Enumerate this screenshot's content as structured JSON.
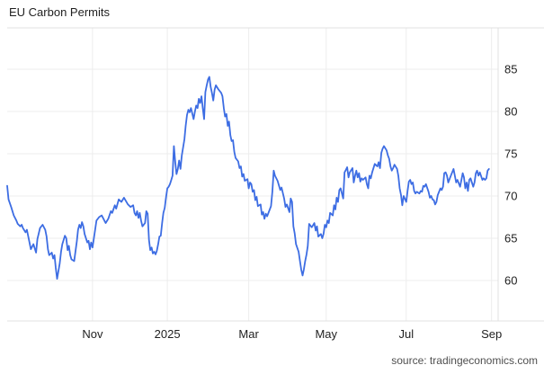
{
  "header": {
    "title": "EU Carbon Permits"
  },
  "footer": {
    "source": "source: tradingeconomics.com"
  },
  "colors": {
    "line": "#3D6DE3",
    "grid": "#EDEDED",
    "border": "#E0E0E0",
    "axis_text": "#1f1f1f",
    "title_text": "#1f1f1f",
    "source_text": "#4f4f4f",
    "background": "#FFFFFF"
  },
  "chart_data": {
    "type": "line",
    "title": "EU Carbon Permits",
    "legend": "none",
    "grid": "on",
    "x_axis": {
      "unit": "days_from_chart_start (chart spans ~Sep 2024 to ~Sep 2025)",
      "range": [
        0,
        374
      ],
      "ticks": [
        {
          "day": 65,
          "label": "Nov"
        },
        {
          "day": 122,
          "label": "2025"
        },
        {
          "day": 184,
          "label": "Mar"
        },
        {
          "day": 243,
          "label": "May"
        },
        {
          "day": 304,
          "label": "Jul"
        },
        {
          "day": 369,
          "label": "Sep"
        }
      ]
    },
    "y_axis": {
      "side": "right",
      "range": [
        55,
        90
      ],
      "ticks": [
        60,
        65,
        70,
        75,
        80,
        85
      ]
    },
    "series": [
      {
        "name": "EU Carbon Permits",
        "points": [
          [
            0,
            71.2
          ],
          [
            1,
            69.6
          ],
          [
            3,
            68.7
          ],
          [
            5,
            67.7
          ],
          [
            7,
            67.1
          ],
          [
            8,
            66.7
          ],
          [
            10,
            66.4
          ],
          [
            11,
            66.6
          ],
          [
            12,
            66.2
          ],
          [
            14,
            65.7
          ],
          [
            15,
            66.0
          ],
          [
            17,
            64.5
          ],
          [
            18,
            63.7
          ],
          [
            20,
            64.3
          ],
          [
            22,
            63.3
          ],
          [
            23,
            64.9
          ],
          [
            25,
            66.2
          ],
          [
            27,
            66.6
          ],
          [
            29,
            66.0
          ],
          [
            30,
            65.2
          ],
          [
            31,
            63.7
          ],
          [
            32,
            63.0
          ],
          [
            34,
            63.3
          ],
          [
            35,
            62.6
          ],
          [
            36,
            63.0
          ],
          [
            37,
            61.5
          ],
          [
            38,
            60.2
          ],
          [
            40,
            62.0
          ],
          [
            41,
            63.4
          ],
          [
            42,
            64.3
          ],
          [
            44,
            65.3
          ],
          [
            45,
            65.0
          ],
          [
            46,
            63.6
          ],
          [
            47,
            64.1
          ],
          [
            48,
            63.0
          ],
          [
            49,
            62.5
          ],
          [
            51,
            62.3
          ],
          [
            53,
            64.6
          ],
          [
            54,
            66.0
          ],
          [
            55,
            66.6
          ],
          [
            56,
            66.2
          ],
          [
            57,
            66.9
          ],
          [
            58,
            66.4
          ],
          [
            59,
            65.5
          ],
          [
            61,
            64.5
          ],
          [
            62,
            64.7
          ],
          [
            63,
            63.7
          ],
          [
            64,
            64.5
          ],
          [
            65,
            63.9
          ],
          [
            67,
            66.0
          ],
          [
            68,
            67.1
          ],
          [
            70,
            67.5
          ],
          [
            72,
            67.7
          ],
          [
            75,
            66.8
          ],
          [
            77,
            67.3
          ],
          [
            79,
            68.2
          ],
          [
            80,
            68.0
          ],
          [
            82,
            68.9
          ],
          [
            83,
            68.5
          ],
          [
            85,
            69.6
          ],
          [
            87,
            69.3
          ],
          [
            89,
            69.8
          ],
          [
            92,
            69.0
          ],
          [
            94,
            68.7
          ],
          [
            96,
            68.9
          ],
          [
            97,
            68.0
          ],
          [
            98,
            67.7
          ],
          [
            99,
            68.2
          ],
          [
            100,
            67.4
          ],
          [
            101,
            68.0
          ],
          [
            102,
            67.1
          ],
          [
            103,
            66.4
          ],
          [
            105,
            66.8
          ],
          [
            106,
            68.2
          ],
          [
            107,
            67.9
          ],
          [
            108,
            64.8
          ],
          [
            109,
            63.6
          ],
          [
            110,
            63.9
          ],
          [
            111,
            63.2
          ],
          [
            112,
            63.4
          ],
          [
            113,
            63.1
          ],
          [
            114,
            63.5
          ],
          [
            115,
            64.3
          ],
          [
            116,
            65.2
          ],
          [
            117,
            65.3
          ],
          [
            118,
            66.8
          ],
          [
            119,
            68.0
          ],
          [
            120,
            68.6
          ],
          [
            121,
            69.8
          ],
          [
            122,
            70.9
          ],
          [
            123,
            71.1
          ],
          [
            124,
            71.4
          ],
          [
            125,
            71.9
          ],
          [
            126,
            72.4
          ],
          [
            127,
            75.9
          ],
          [
            128,
            74.0
          ],
          [
            129,
            72.6
          ],
          [
            130,
            73.2
          ],
          [
            131,
            74.2
          ],
          [
            132,
            73.2
          ],
          [
            133,
            74.8
          ],
          [
            135,
            76.7
          ],
          [
            136,
            78.3
          ],
          [
            137,
            79.6
          ],
          [
            138,
            80.2
          ],
          [
            139,
            79.9
          ],
          [
            140,
            80.4
          ],
          [
            142,
            79.1
          ],
          [
            143,
            80.0
          ],
          [
            144,
            80.7
          ],
          [
            145,
            80.4
          ],
          [
            146,
            81.5
          ],
          [
            147,
            81.0
          ],
          [
            148,
            81.8
          ],
          [
            149,
            80.4
          ],
          [
            150,
            79.1
          ],
          [
            151,
            82.3
          ],
          [
            152,
            83.1
          ],
          [
            153,
            83.8
          ],
          [
            154,
            84.1
          ],
          [
            155,
            82.9
          ],
          [
            156,
            82.2
          ],
          [
            157,
            81.3
          ],
          [
            158,
            82.6
          ],
          [
            159,
            83.1
          ],
          [
            161,
            82.6
          ],
          [
            163,
            82.2
          ],
          [
            164,
            81.8
          ],
          [
            165,
            80.4
          ],
          [
            166,
            79.4
          ],
          [
            167,
            79.7
          ],
          [
            168,
            78.3
          ],
          [
            169,
            78.8
          ],
          [
            170,
            77.2
          ],
          [
            171,
            76.5
          ],
          [
            172,
            76.6
          ],
          [
            173,
            75.2
          ],
          [
            174,
            74.5
          ],
          [
            176,
            74.1
          ],
          [
            177,
            73.3
          ],
          [
            178,
            73.5
          ],
          [
            179,
            72.3
          ],
          [
            180,
            72.6
          ],
          [
            181,
            71.8
          ],
          [
            183,
            72.0
          ],
          [
            184,
            70.9
          ],
          [
            185,
            71.6
          ],
          [
            186,
            71.4
          ],
          [
            187,
            70.5
          ],
          [
            188,
            70.7
          ],
          [
            189,
            69.5
          ],
          [
            190,
            69.9
          ],
          [
            191,
            68.8
          ],
          [
            193,
            69.0
          ],
          [
            194,
            67.8
          ],
          [
            195,
            68.1
          ],
          [
            196,
            67.3
          ],
          [
            197,
            67.9
          ],
          [
            198,
            67.6
          ],
          [
            200,
            68.4
          ],
          [
            201,
            68.8
          ],
          [
            202,
            70.5
          ],
          [
            203,
            73.0
          ],
          [
            204,
            72.4
          ],
          [
            206,
            71.8
          ],
          [
            208,
            70.7
          ],
          [
            209,
            71.0
          ],
          [
            211,
            69.7
          ],
          [
            212,
            68.7
          ],
          [
            213,
            69.0
          ],
          [
            215,
            68.1
          ],
          [
            216,
            69.7
          ],
          [
            217,
            69.3
          ],
          [
            218,
            66.4
          ],
          [
            219,
            65.6
          ],
          [
            220,
            64.3
          ],
          [
            222,
            63.4
          ],
          [
            223,
            62.3
          ],
          [
            224,
            61.3
          ],
          [
            225,
            60.6
          ],
          [
            226,
            61.3
          ],
          [
            227,
            62.3
          ],
          [
            228,
            63.1
          ],
          [
            229,
            64.1
          ],
          [
            230,
            66.7
          ],
          [
            232,
            66.3
          ],
          [
            234,
            66.8
          ],
          [
            235,
            65.9
          ],
          [
            236,
            66.4
          ],
          [
            237,
            65.2
          ],
          [
            239,
            65.5
          ],
          [
            240,
            65.0
          ],
          [
            241,
            65.5
          ],
          [
            242,
            66.6
          ],
          [
            243,
            66.3
          ],
          [
            244,
            67.1
          ],
          [
            245,
            66.8
          ],
          [
            246,
            68.0
          ],
          [
            248,
            67.7
          ],
          [
            249,
            68.9
          ],
          [
            250,
            68.4
          ],
          [
            251,
            69.8
          ],
          [
            252,
            69.3
          ],
          [
            253,
            70.7
          ],
          [
            254,
            70.9
          ],
          [
            256,
            69.7
          ],
          [
            257,
            72.8
          ],
          [
            258,
            73.1
          ],
          [
            259,
            73.4
          ],
          [
            260,
            72.2
          ],
          [
            261,
            72.8
          ],
          [
            263,
            73.3
          ],
          [
            264,
            71.6
          ],
          [
            265,
            72.4
          ],
          [
            266,
            73.0
          ],
          [
            267,
            72.2
          ],
          [
            268,
            72.7
          ],
          [
            269,
            71.7
          ],
          [
            270,
            72.1
          ],
          [
            271,
            71.9
          ],
          [
            273,
            72.2
          ],
          [
            274,
            71.4
          ],
          [
            275,
            70.9
          ],
          [
            276,
            72.4
          ],
          [
            277,
            72.1
          ],
          [
            278,
            72.8
          ],
          [
            280,
            73.8
          ],
          [
            282,
            73.5
          ],
          [
            283,
            74.0
          ],
          [
            284,
            73.3
          ],
          [
            285,
            75.1
          ],
          [
            286,
            75.6
          ],
          [
            287,
            75.9
          ],
          [
            289,
            75.4
          ],
          [
            290,
            74.8
          ],
          [
            291,
            74.4
          ],
          [
            292,
            73.5
          ],
          [
            293,
            73.0
          ],
          [
            294,
            73.3
          ],
          [
            295,
            73.7
          ],
          [
            297,
            73.2
          ],
          [
            298,
            72.4
          ],
          [
            299,
            70.9
          ],
          [
            300,
            70.1
          ],
          [
            301,
            68.9
          ],
          [
            302,
            70.0
          ],
          [
            304,
            69.3
          ],
          [
            305,
            70.6
          ],
          [
            306,
            71.7
          ],
          [
            307,
            71.9
          ],
          [
            308,
            71.4
          ],
          [
            309,
            71.6
          ],
          [
            310,
            70.6
          ],
          [
            311,
            70.3
          ],
          [
            312,
            70.5
          ],
          [
            314,
            70.3
          ],
          [
            315,
            70.6
          ],
          [
            316,
            70.5
          ],
          [
            317,
            71.2
          ],
          [
            318,
            71.1
          ],
          [
            319,
            71.4
          ],
          [
            321,
            70.5
          ],
          [
            322,
            69.8
          ],
          [
            323,
            70.0
          ],
          [
            324,
            69.6
          ],
          [
            325,
            69.5
          ],
          [
            326,
            69.0
          ],
          [
            327,
            69.3
          ],
          [
            328,
            70.1
          ],
          [
            330,
            70.9
          ],
          [
            331,
            70.7
          ],
          [
            332,
            71.1
          ],
          [
            333,
            72.7
          ],
          [
            334,
            72.8
          ],
          [
            335,
            72.4
          ],
          [
            336,
            71.6
          ],
          [
            338,
            72.4
          ],
          [
            340,
            73.2
          ],
          [
            342,
            71.6
          ],
          [
            343,
            71.9
          ],
          [
            345,
            71.1
          ],
          [
            347,
            72.7
          ],
          [
            348,
            72.2
          ],
          [
            349,
            70.9
          ],
          [
            350,
            71.6
          ],
          [
            351,
            70.6
          ],
          [
            352,
            71.9
          ],
          [
            353,
            72.1
          ],
          [
            355,
            71.1
          ],
          [
            356,
            71.6
          ],
          [
            357,
            72.7
          ],
          [
            358,
            73.0
          ],
          [
            359,
            72.4
          ],
          [
            360,
            72.8
          ],
          [
            362,
            71.9
          ],
          [
            363,
            72.1
          ],
          [
            364,
            71.9
          ],
          [
            365,
            72.1
          ],
          [
            366,
            73.0
          ],
          [
            367,
            73.2
          ]
        ]
      }
    ]
  }
}
